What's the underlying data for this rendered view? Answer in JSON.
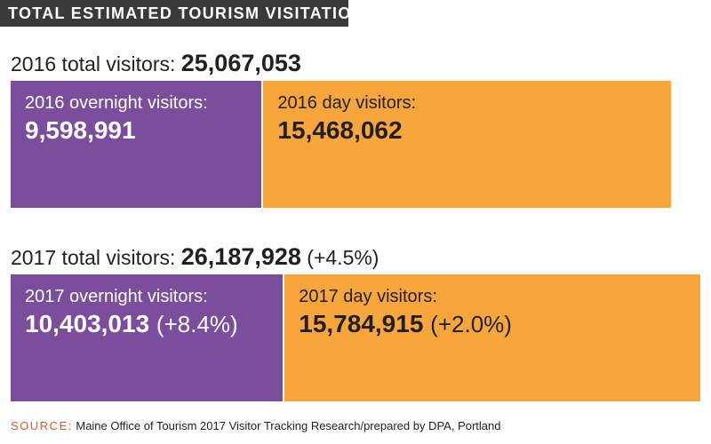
{
  "header": {
    "title": "TOTAL ESTIMATED TOURISM VISITATION"
  },
  "colors": {
    "overnight": "#7b4e9d",
    "day": "#f6a63a",
    "header_bg": "#3a3a3c",
    "source_accent": "#e35a2a"
  },
  "chart_data": {
    "type": "bar",
    "orientation": "horizontal-stacked",
    "title": "TOTAL ESTIMATED TOURISM VISITATION",
    "rows": [
      {
        "total_label": "2016 total visitors:",
        "total_value": "25,067,053",
        "total_change": "",
        "total": 25067053,
        "segments": [
          {
            "key": "overnight",
            "label": "2016 overnight visitors:",
            "value_text": "9,598,991",
            "change": "",
            "value": 9598991
          },
          {
            "key": "day",
            "label": "2016 day visitors:",
            "value_text": "15,468,062",
            "change": "",
            "value": 15468062
          }
        ]
      },
      {
        "total_label": "2017 total visitors:",
        "total_value": "26,187,928",
        "total_change": "(+4.5%)",
        "total": 26187928,
        "segments": [
          {
            "key": "overnight",
            "label": "2017 overnight visitors:",
            "value_text": "10,403,013",
            "change": "(+8.4%)",
            "value": 10403013
          },
          {
            "key": "day",
            "label": "2017 day visitors:",
            "value_text": "15,784,915",
            "change": "(+2.0%)",
            "value": 15784915
          }
        ]
      }
    ]
  },
  "source": {
    "key": "SOURCE:",
    "text": "Maine Office of Tourism 2017 Visitor Tracking Research/prepared by DPA, Portland"
  }
}
